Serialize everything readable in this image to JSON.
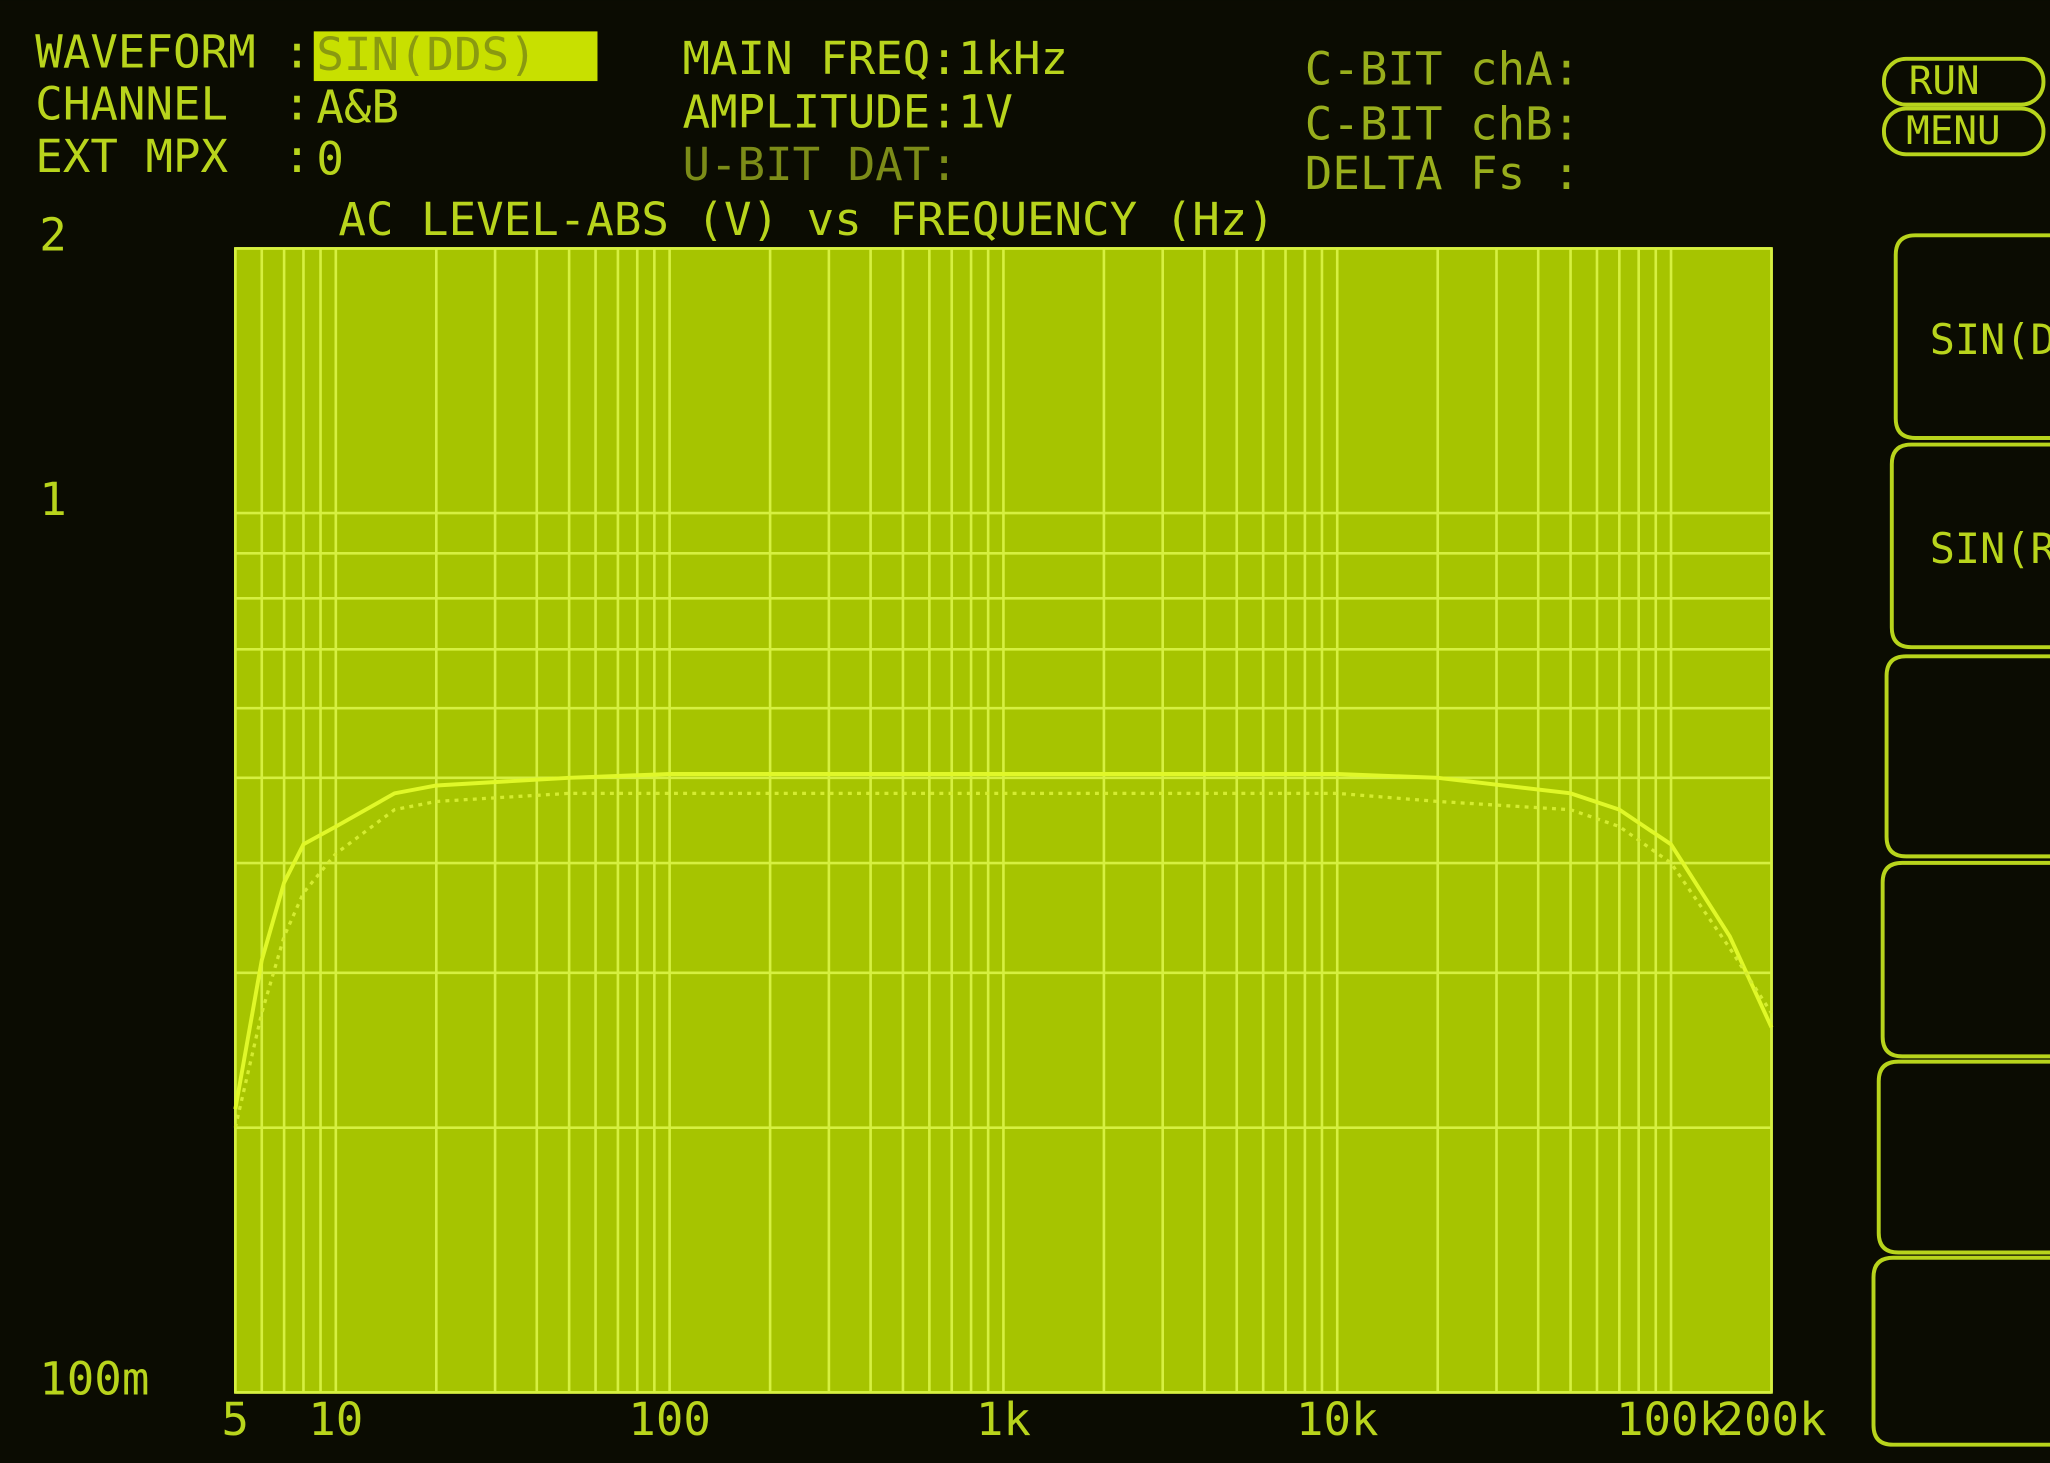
{
  "header": {
    "fields": [
      {
        "label": "WAVEFORM :",
        "value": "SIN(DDS)"
      },
      {
        "label": "CHANNEL  :",
        "value": "A&B"
      },
      {
        "label": "EXT MPX  :",
        "value": "0"
      }
    ],
    "status": [
      "MAIN FREQ:1kHz",
      "AMPLITUDE:1V",
      "U-BIT DAT:"
    ],
    "cbit": [
      "C-BIT chA:",
      "C-BIT chB:",
      "DELTA Fs :"
    ]
  },
  "buttons": [
    "RUN",
    "MENU"
  ],
  "softkeys": [
    "SIN(D",
    "SIN(R"
  ],
  "chart_data": {
    "type": "line",
    "title": "AC LEVEL-ABS (V) vs FREQUENCY (Hz)",
    "xscale": "log",
    "yscale": "log",
    "xlim": [
      5,
      200000
    ],
    "ylim": [
      0.1,
      2
    ],
    "xticks": [
      5,
      10,
      100,
      {
        "value": 1000,
        "label": "1k"
      },
      {
        "value": 10000,
        "label": "10k"
      },
      {
        "value": 100000,
        "label": "100k"
      },
      {
        "value": 200000,
        "label": "200k"
      }
    ],
    "yticks": [
      2,
      1,
      {
        "value": 0.1,
        "label": "100m"
      }
    ],
    "xgrid": [
      6,
      7,
      8,
      9,
      20,
      30,
      40,
      50,
      60,
      70,
      80,
      90,
      200,
      300,
      400,
      500,
      600,
      700,
      800,
      900,
      2000,
      3000,
      4000,
      5000,
      6000,
      7000,
      8000,
      9000,
      20000,
      30000,
      40000,
      50000,
      60000,
      70000,
      80000,
      90000
    ],
    "ygrid": [
      0.2,
      0.3,
      0.4,
      0.5,
      0.6,
      0.7,
      0.8,
      0.9
    ],
    "x": [
      5,
      6,
      7,
      8,
      10,
      15,
      20,
      50,
      100,
      1000,
      10000,
      20000,
      50000,
      70000,
      100000,
      150000,
      200000
    ],
    "series": [
      {
        "color": "#e0f828",
        "dash": "solid",
        "values": [
          0.21,
          0.31,
          0.38,
          0.42,
          0.44,
          0.48,
          0.49,
          0.5,
          0.505,
          0.505,
          0.505,
          0.5,
          0.48,
          0.46,
          0.42,
          0.33,
          0.26
        ]
      },
      {
        "color": "#d4ec30",
        "dash": "dotted",
        "values": [
          0.2,
          0.27,
          0.33,
          0.37,
          0.41,
          0.46,
          0.47,
          0.48,
          0.48,
          0.48,
          0.48,
          0.47,
          0.46,
          0.44,
          0.4,
          0.32,
          0.27
        ]
      }
    ]
  }
}
